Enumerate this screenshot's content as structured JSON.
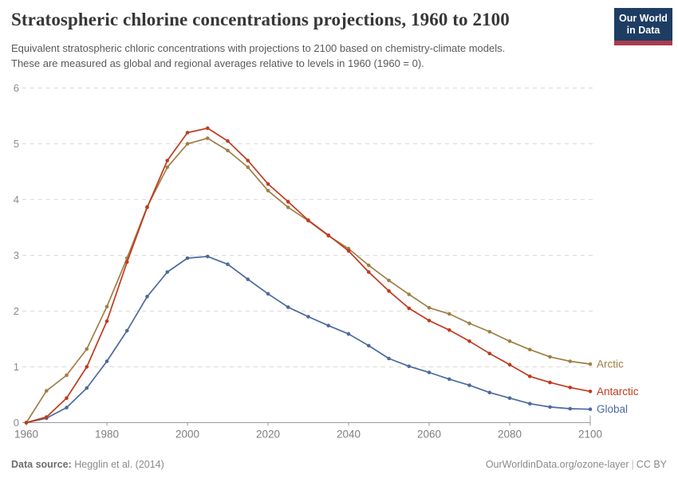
{
  "header": {
    "title": "Stratospheric chlorine concentrations projections, 1960 to 2100",
    "subtitle_line1": "Equivalent stratospheric chloric concentrations with projections to 2100 based on chemistry-climate models.",
    "subtitle_line2": "These are measured as global and regional averages relative to levels in 1960 (1960 = 0).",
    "logo_line1": "Our World",
    "logo_line2": "in Data",
    "logo_colors": {
      "background": "#1d3d63",
      "stripe": "#a93c4e",
      "text": "#ffffff"
    }
  },
  "footer": {
    "source_label": "Data source:",
    "source_value": "Hegglin et al. (2014)",
    "link": "OurWorldinData.org/ozone-layer",
    "separator": "|",
    "license": "CC BY"
  },
  "chart_data": {
    "type": "line",
    "title": "Stratospheric chlorine concentrations projections, 1960 to 2100",
    "xlabel": "",
    "ylabel": "",
    "xlim": [
      1960,
      2100
    ],
    "ylim": [
      0,
      6
    ],
    "xticks": [
      1960,
      1980,
      2000,
      2020,
      2040,
      2060,
      2080,
      2100
    ],
    "yticks": [
      0,
      1,
      2,
      3,
      4,
      5,
      6
    ],
    "grid": "horizontal-dashed",
    "legend_position": "end-of-line-labels-right",
    "x": [
      1960,
      1965,
      1970,
      1975,
      1980,
      1985,
      1990,
      1995,
      2000,
      2005,
      2010,
      2015,
      2020,
      2025,
      2030,
      2035,
      2040,
      2045,
      2050,
      2055,
      2060,
      2065,
      2070,
      2075,
      2080,
      2085,
      2090,
      2095,
      2100
    ],
    "series": [
      {
        "name": "Arctic",
        "color": "#a07e46",
        "values": [
          0,
          0.57,
          0.85,
          1.32,
          2.08,
          2.95,
          3.87,
          4.58,
          5.0,
          5.1,
          4.88,
          4.58,
          4.16,
          3.86,
          3.62,
          3.35,
          3.12,
          2.82,
          2.55,
          2.3,
          2.06,
          1.95,
          1.78,
          1.63,
          1.46,
          1.31,
          1.18,
          1.1,
          1.05
        ]
      },
      {
        "name": "Antarctic",
        "color": "#c03a1e",
        "values": [
          0,
          0.1,
          0.44,
          1.0,
          1.82,
          2.88,
          3.86,
          4.7,
          5.2,
          5.28,
          5.05,
          4.7,
          4.28,
          3.96,
          3.63,
          3.36,
          3.08,
          2.7,
          2.36,
          2.05,
          1.83,
          1.66,
          1.46,
          1.24,
          1.04,
          0.83,
          0.72,
          0.63,
          0.56
        ]
      },
      {
        "name": "Global",
        "color": "#4c6a9c",
        "values": [
          0,
          0.08,
          0.27,
          0.62,
          1.1,
          1.65,
          2.26,
          2.7,
          2.95,
          2.98,
          2.84,
          2.57,
          2.31,
          2.07,
          1.9,
          1.74,
          1.59,
          1.38,
          1.15,
          1.01,
          0.9,
          0.78,
          0.67,
          0.54,
          0.44,
          0.34,
          0.28,
          0.25,
          0.24
        ]
      }
    ],
    "style": {
      "grid_color": "#dadada",
      "axis_color": "#9a9a9a",
      "tick_label_color": "#8b8b8b"
    }
  }
}
